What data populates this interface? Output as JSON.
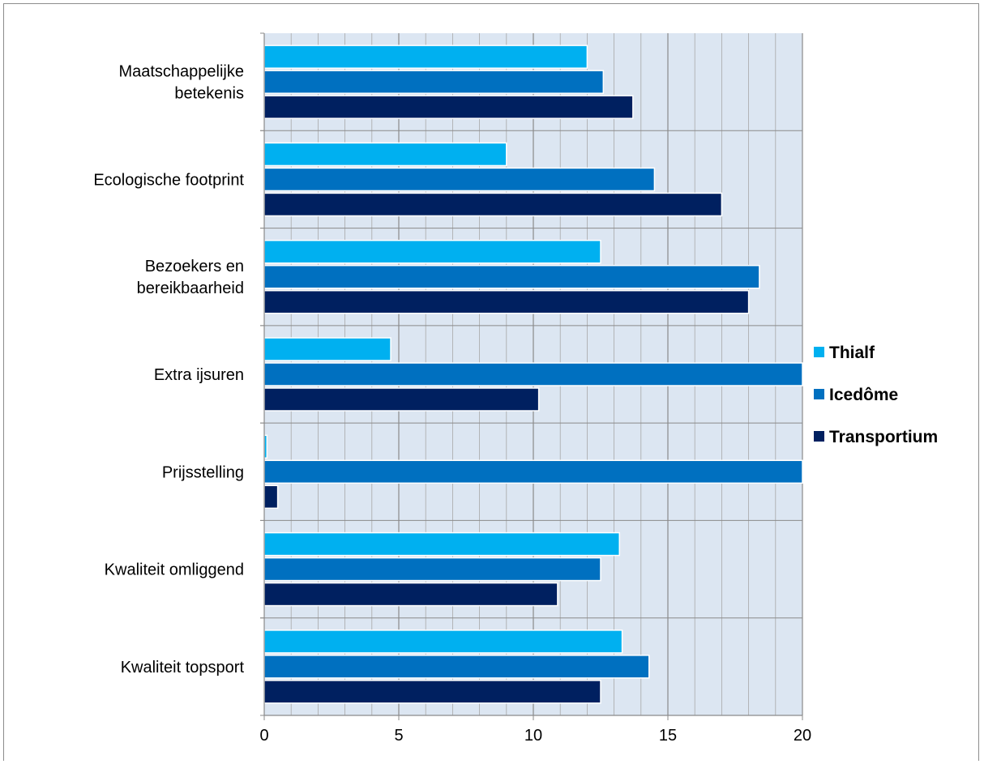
{
  "chart_data": {
    "type": "bar",
    "orientation": "horizontal",
    "categories": [
      [
        "Maatschappelijke",
        "betekenis"
      ],
      [
        "Ecologische footprint"
      ],
      [
        "Bezoekers en",
        "bereikbaarheid"
      ],
      [
        "Extra ijsuren"
      ],
      [
        "Prijsstelling"
      ],
      [
        "Kwaliteit omliggend"
      ],
      [
        "Kwaliteit topsport"
      ]
    ],
    "series": [
      {
        "name": "Thialf",
        "color": "#00b0f0",
        "values": [
          12.0,
          9.0,
          12.5,
          4.7,
          0.1,
          13.2,
          13.3
        ]
      },
      {
        "name": "Icedôme",
        "color": "#0070c0",
        "values": [
          12.6,
          14.5,
          18.4,
          20.0,
          20.0,
          12.5,
          14.3
        ]
      },
      {
        "name": "Transportium",
        "color": "#002060",
        "values": [
          13.7,
          17.0,
          18.0,
          10.2,
          0.5,
          10.9,
          12.5
        ]
      }
    ],
    "xlim": [
      0,
      20
    ],
    "x_ticks": [
      "0",
      "5",
      "10",
      "15",
      "20"
    ],
    "grid": true,
    "plot_background": "#dce6f2",
    "legend_position": "right"
  }
}
